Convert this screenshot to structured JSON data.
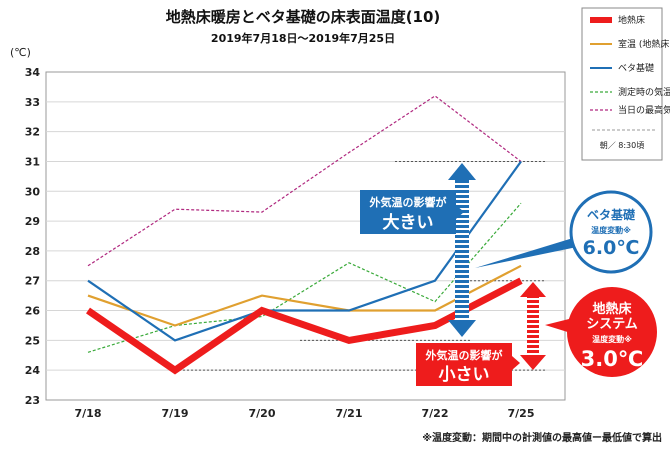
{
  "chart_data": {
    "type": "line",
    "title": "地熱床暖房とベタ基礎の床表面温度(10)",
    "subtitle": "2019年7月18日〜2019年7月25日",
    "unit_label": "(℃)",
    "categories": [
      "7/18",
      "7/19",
      "7/20",
      "7/21",
      "7/22",
      "7/25"
    ],
    "ylim": [
      23,
      34
    ],
    "yticks": [
      23,
      24,
      25,
      26,
      27,
      28,
      29,
      30,
      31,
      32,
      33,
      34
    ],
    "grid": true,
    "legend_position": "top-right",
    "series": [
      {
        "name": "地熱床",
        "values": [
          26.0,
          24.0,
          26.0,
          25.0,
          25.5,
          27.0
        ],
        "color": "#ee1c1c",
        "style": "thick"
      },
      {
        "name": "室温 (地熱床)",
        "values": [
          26.5,
          25.5,
          26.5,
          26.0,
          26.0,
          27.5
        ],
        "color": "#e0a030",
        "style": "solid"
      },
      {
        "name": "ベタ基礎",
        "values": [
          27.0,
          25.0,
          26.0,
          26.0,
          27.0,
          31.0
        ],
        "color": "#1f6fb5",
        "style": "solid"
      },
      {
        "name": "測定時の気温",
        "values": [
          24.6,
          25.5,
          25.8,
          27.6,
          26.3,
          29.6
        ],
        "color": "#3aaa3a",
        "style": "dashed"
      },
      {
        "name": "当日の最高気温",
        "values": [
          27.5,
          29.4,
          29.3,
          31.3,
          33.2,
          31.0
        ],
        "color": "#b0287f",
        "style": "dashed"
      }
    ],
    "legend_note": "朝／ 8:30頃",
    "reference_lines": [
      31,
      27,
      25,
      24
    ],
    "callouts": {
      "large_line1": "外気温の影響が",
      "large_line2": "大きい",
      "small_line1": "外気温の影響が",
      "small_line2": "小さい",
      "beta_name": "ベタ基礎",
      "beta_sub": "温度変動※",
      "beta_value": "6.0℃",
      "geo_name1": "地熱床",
      "geo_name2": "システム",
      "geo_sub": "温度変動※",
      "geo_value": "3.0℃"
    },
    "footnote": "※温度変動：期間中の計測値の最高値ー最低値で算出"
  }
}
